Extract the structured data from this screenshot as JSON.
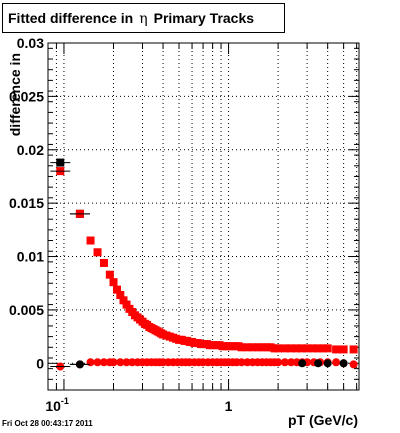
{
  "chart_data": {
    "type": "scatter",
    "title_prefix": "Fitted difference in",
    "title_symbol": "η",
    "title_suffix": "Primary Tracks",
    "xlabel": "pT (GeV/c)",
    "ylabel": "difference in",
    "xscale": "log",
    "xlim": [
      0.08,
      6.2
    ],
    "ylim": [
      -0.0025,
      0.03
    ],
    "grid": true,
    "yticks": [
      {
        "value": 0,
        "label": "0"
      },
      {
        "value": 0.005,
        "label": "0.005"
      },
      {
        "value": 0.01,
        "label": "0.01"
      },
      {
        "value": 0.015,
        "label": "0.015"
      },
      {
        "value": 0.02,
        "label": "0.02"
      },
      {
        "value": 0.025,
        "label": "0.025"
      },
      {
        "value": 0.03,
        "label": "0.03"
      }
    ],
    "xticks_major": [
      {
        "value": 0.1,
        "label": "10",
        "sup": "-1"
      },
      {
        "value": 1,
        "label": "1",
        "sup": ""
      }
    ],
    "series": [
      {
        "color": "#000000",
        "marker": "square",
        "x": [
          0.095,
          0.125
        ],
        "y": [
          0.0188,
          0.014
        ]
      },
      {
        "color": "#ff0000",
        "marker": "square",
        "x": [
          0.095,
          0.125,
          0.145,
          0.16,
          0.175,
          0.19,
          0.2,
          0.21,
          0.22,
          0.23,
          0.24,
          0.25,
          0.26,
          0.27,
          0.28,
          0.29,
          0.3,
          0.31,
          0.32,
          0.33,
          0.34,
          0.35,
          0.36,
          0.37,
          0.38,
          0.39,
          0.4,
          0.42,
          0.44,
          0.46,
          0.48,
          0.5,
          0.52,
          0.54,
          0.56,
          0.58,
          0.6,
          0.62,
          0.65,
          0.68,
          0.71,
          0.74,
          0.77,
          0.8,
          0.84,
          0.88,
          0.92,
          0.96,
          1.0,
          1.05,
          1.1,
          1.15,
          1.2,
          1.3,
          1.4,
          1.5,
          1.6,
          1.7,
          1.8,
          1.9,
          2.0,
          2.2,
          2.4,
          2.6,
          2.8,
          3.0,
          3.25,
          3.5,
          3.75,
          4.0,
          4.5,
          5.0,
          5.75
        ],
        "y": [
          0.018,
          0.014,
          0.0115,
          0.0104,
          0.0094,
          0.0083,
          0.0076,
          0.0069,
          0.0064,
          0.0059,
          0.0055,
          0.0051,
          0.0048,
          0.0045,
          0.0043,
          0.0041,
          0.0039,
          0.0037,
          0.0036,
          0.0034,
          0.0033,
          0.0032,
          0.0031,
          0.003,
          0.0029,
          0.0028,
          0.0027,
          0.0026,
          0.0025,
          0.0024,
          0.0023,
          0.0022,
          0.0022,
          0.0021,
          0.0021,
          0.002,
          0.002,
          0.0019,
          0.0019,
          0.0018,
          0.0018,
          0.0018,
          0.0017,
          0.0017,
          0.0017,
          0.0017,
          0.0016,
          0.0016,
          0.0016,
          0.0016,
          0.0016,
          0.0016,
          0.0015,
          0.0015,
          0.0015,
          0.0015,
          0.0015,
          0.0015,
          0.0015,
          0.0014,
          0.0014,
          0.0014,
          0.0014,
          0.0014,
          0.0014,
          0.0014,
          0.0014,
          0.0014,
          0.0014,
          0.0014,
          0.0013,
          0.0013,
          0.0013
        ]
      },
      {
        "color": "#ff0000",
        "marker": "circle",
        "x": [
          0.095,
          0.125,
          0.145,
          0.16,
          0.175,
          0.19,
          0.2,
          0.22,
          0.24,
          0.26,
          0.28,
          0.3,
          0.32,
          0.34,
          0.36,
          0.38,
          0.4,
          0.43,
          0.46,
          0.49,
          0.52,
          0.55,
          0.58,
          0.62,
          0.66,
          0.7,
          0.75,
          0.8,
          0.85,
          0.9,
          0.95,
          1.0,
          1.06,
          1.12,
          1.2,
          1.3,
          1.4,
          1.5,
          1.6,
          1.7,
          1.8,
          1.9,
          2.0,
          2.2,
          2.4,
          2.6,
          2.8,
          3.0,
          3.3,
          3.6,
          4.0,
          4.5,
          5.0,
          5.75
        ],
        "y": [
          -0.0003,
          -0.0001,
          0.0001,
          0.0001,
          0.0001,
          0.0001,
          0.0001,
          0.0001,
          0.0001,
          0.0001,
          0.0001,
          0.0001,
          0.0001,
          0.0001,
          0.0001,
          0.0001,
          0.0001,
          0.0001,
          0.0001,
          0.0001,
          0.0001,
          0.0001,
          0.0001,
          0.0001,
          0.0001,
          0.0001,
          0.0001,
          0.0001,
          0.0001,
          0.0001,
          0.0001,
          0.0001,
          0.0001,
          0.0001,
          0.0001,
          0.0001,
          0.0001,
          0.0001,
          0.0001,
          0.0001,
          0.0001,
          0.0001,
          0.0001,
          0.0001,
          0.0001,
          0.0001,
          0.0001,
          0.0001,
          0.0001,
          0.0001,
          0.0001,
          0.0001,
          0.0,
          -0.0001
        ]
      },
      {
        "color": "#000000",
        "marker": "circle",
        "x": [
          0.125,
          2.8,
          3.5,
          4.0,
          5.0
        ],
        "y": [
          -0.0001,
          0.0,
          0.0,
          0.0,
          0.0
        ]
      }
    ]
  },
  "footer": "Fri Oct 28 00:43:17 2011"
}
